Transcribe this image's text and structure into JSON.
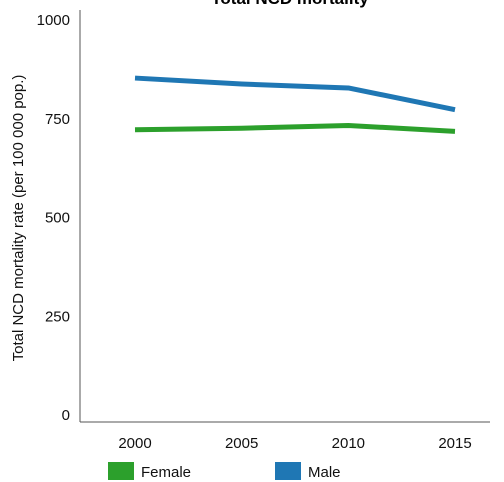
{
  "chart_data": {
    "type": "line",
    "title": "Total NCD mortality",
    "xlabel": "",
    "ylabel": "Total NCD mortality rate (per 100 000 pop.)",
    "x": [
      2000,
      2005,
      2010,
      2015
    ],
    "x_tick_labels": [
      "2000",
      "2005",
      "2010",
      "2015"
    ],
    "y_ticks": [
      0,
      250,
      500,
      750,
      1000
    ],
    "y_tick_labels": [
      "0",
      "250",
      "500",
      "750",
      "1000"
    ],
    "ylim": [
      0,
      1000
    ],
    "grid": false,
    "legend_position": "bottom",
    "series": [
      {
        "name": "Female",
        "color": "#2ca02c",
        "values": [
          722,
          726,
          733,
          718
        ]
      },
      {
        "name": "Male",
        "color": "#1f77b4",
        "values": [
          853,
          838,
          828,
          773
        ]
      }
    ]
  }
}
